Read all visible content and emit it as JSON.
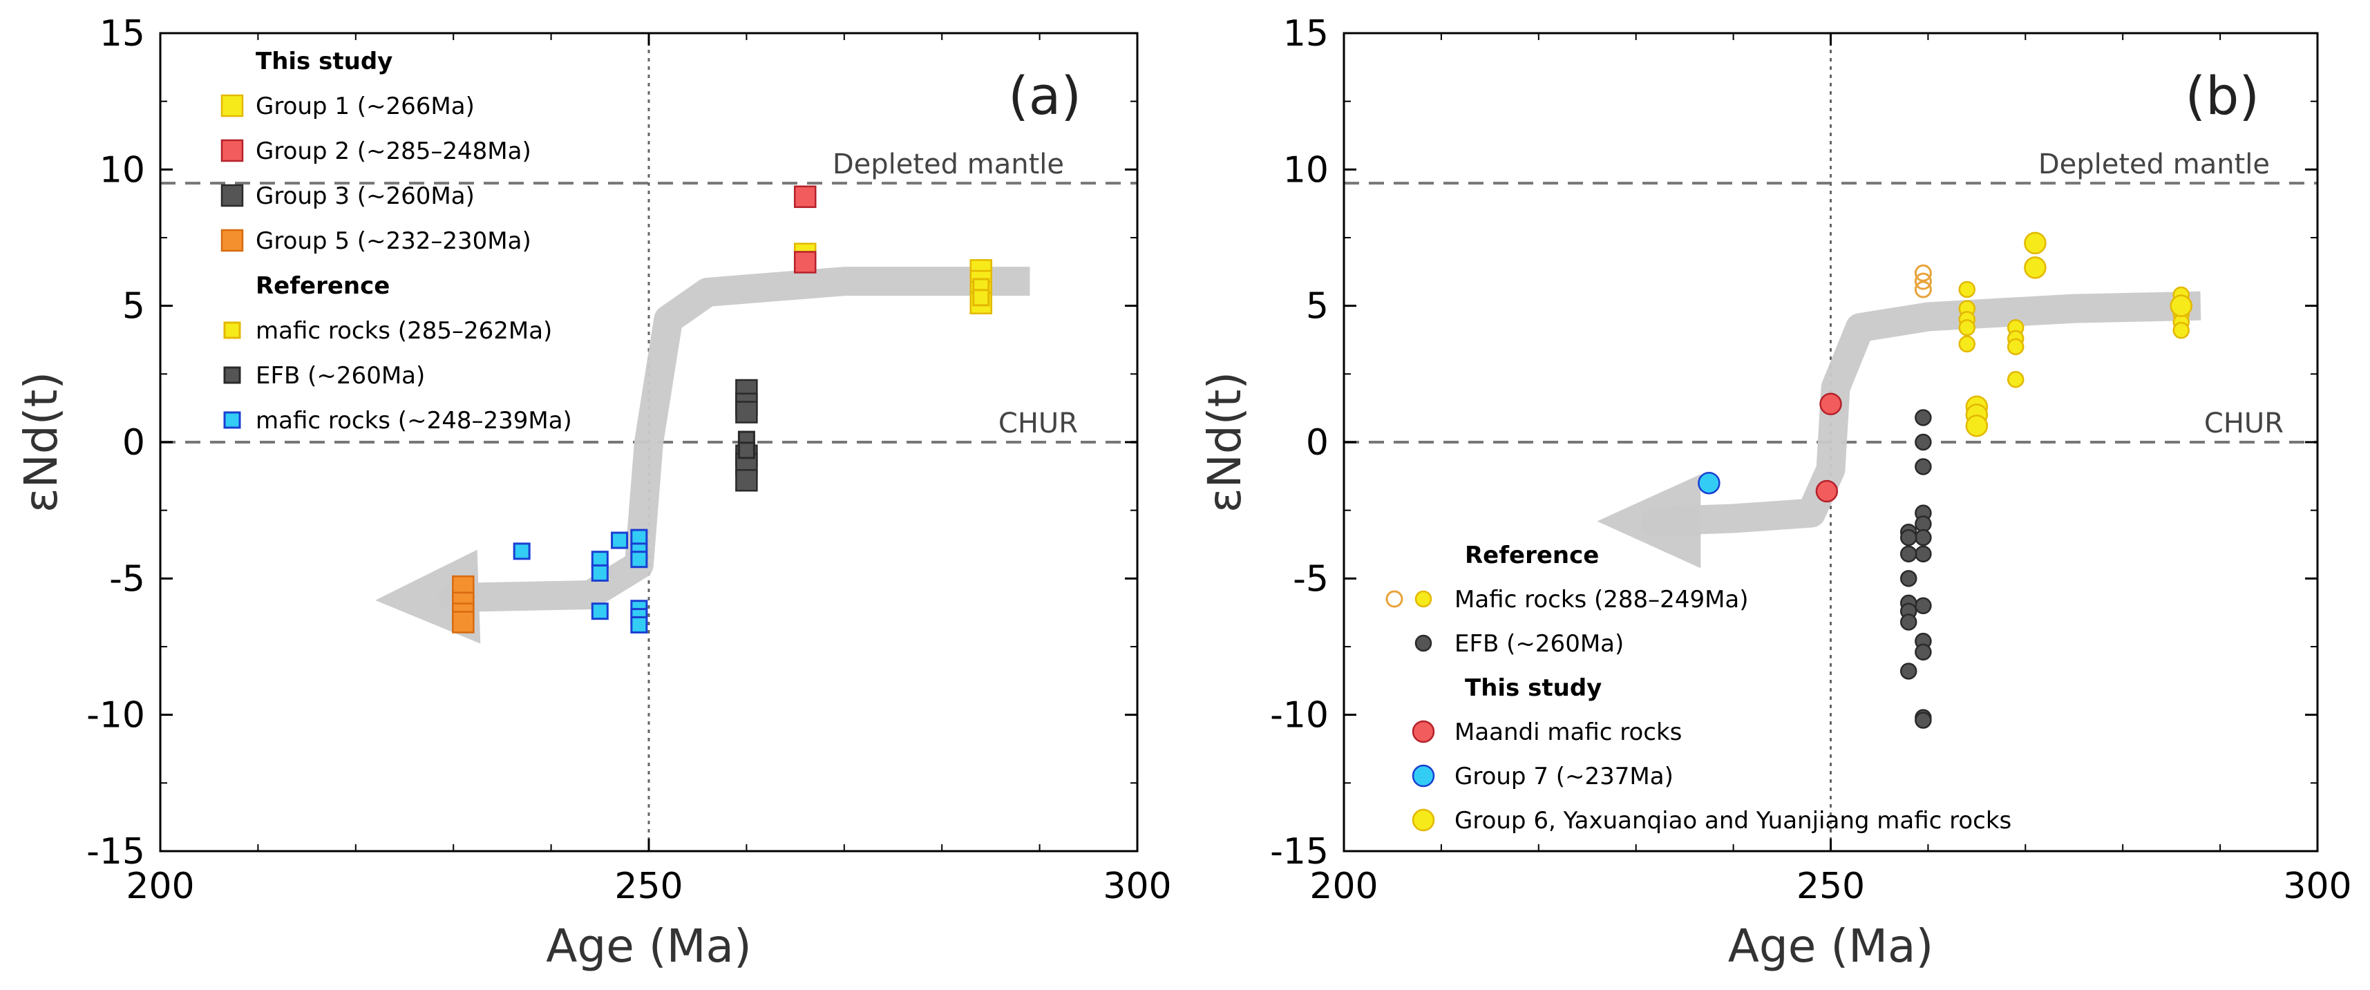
{
  "chart_data": [
    {
      "panel_label": "(a)",
      "type": "scatter",
      "xlabel": "Age (Ma)",
      "ylabel": "εNd(t)",
      "xlim": [
        200,
        300
      ],
      "ylim": [
        -15,
        15
      ],
      "x_ticks": [
        200,
        250,
        300
      ],
      "y_ticks": [
        -15,
        -10,
        -5,
        0,
        5,
        10,
        15
      ],
      "reference_lines": {
        "depleted_mantle": {
          "label": "Depleted mantle",
          "y": 9.5
        },
        "chur": {
          "label": "CHUR",
          "y": 0
        },
        "age_line": {
          "x": 250
        }
      },
      "trend_arrow": {
        "points": [
          [
            289,
            5.9
          ],
          [
            270,
            5.9
          ],
          [
            256,
            5.5
          ],
          [
            252,
            4.5
          ],
          [
            250,
            0
          ],
          [
            249,
            -4.5
          ],
          [
            244,
            -5.6
          ],
          [
            230,
            -5.7
          ],
          [
            222,
            -5.8
          ]
        ]
      },
      "legend": [
        {
          "heading": "This study"
        },
        {
          "label": "Group 1 (~266Ma)",
          "series": "g1"
        },
        {
          "label": "Group 2 (~285–248Ma)",
          "series": "g2"
        },
        {
          "label": "Group 3 (~260Ma)",
          "series": "g3"
        },
        {
          "label": "Group 5 (~232–230Ma)",
          "series": "g5"
        },
        {
          "heading": "Reference"
        },
        {
          "label": "mafic rocks (285–262Ma)",
          "series": "ref_mafic"
        },
        {
          "label": "EFB (~260Ma)",
          "series": "ref_efb"
        },
        {
          "label": "mafic rocks (~248–239Ma)",
          "series": "ref_mafic2"
        }
      ],
      "series": [
        {
          "key": "g1",
          "name": "Group 1 (~266Ma)",
          "marker": "square",
          "color": "#f7ea1a",
          "stroke": "#e3b800",
          "points": [
            [
              266,
              6.9
            ],
            [
              284,
              6.3
            ],
            [
              284,
              5.9
            ],
            [
              284,
              5.5
            ],
            [
              284,
              5.1
            ]
          ]
        },
        {
          "key": "g2",
          "name": "Group 2 (~285–248Ma)",
          "marker": "square",
          "color": "#f25c5c",
          "stroke": "#b5222a",
          "points": [
            [
              266,
              9.0
            ],
            [
              266,
              6.6
            ]
          ]
        },
        {
          "key": "g3",
          "name": "Group 3 (~260Ma)",
          "marker": "square",
          "color": "#555555",
          "stroke": "#2a2a2a",
          "points": [
            [
              260,
              1.9
            ],
            [
              260,
              1.4
            ],
            [
              260,
              1.1
            ],
            [
              260,
              -0.5
            ],
            [
              260,
              -0.8
            ],
            [
              260,
              -1.4
            ]
          ]
        },
        {
          "key": "g5",
          "name": "Group 5 (~232–230Ma)",
          "marker": "square",
          "color": "#f5902e",
          "stroke": "#d86a10",
          "points": [
            [
              231,
              -5.3
            ],
            [
              231,
              -5.9
            ],
            [
              231,
              -6.3
            ],
            [
              231,
              -6.6
            ]
          ]
        },
        {
          "key": "ref_mafic",
          "name": "mafic rocks (285–262Ma)",
          "marker": "square-small",
          "color": "#f7ea1a",
          "stroke": "#e3b800",
          "points": [
            [
              284,
              5.7
            ],
            [
              284,
              5.3
            ]
          ]
        },
        {
          "key": "ref_efb",
          "name": "EFB (~260Ma)",
          "marker": "square-small",
          "color": "#555555",
          "stroke": "#2a2a2a",
          "points": [
            [
              260,
              0.1
            ],
            [
              260,
              -0.3
            ]
          ]
        },
        {
          "key": "ref_mafic2",
          "name": "mafic rocks (~248–239Ma)",
          "marker": "square-small",
          "color": "#33ccf5",
          "stroke": "#1a3fd1",
          "points": [
            [
              237,
              -4.0
            ],
            [
              245,
              -4.3
            ],
            [
              245,
              -4.8
            ],
            [
              245,
              -6.2
            ],
            [
              247,
              -3.6
            ],
            [
              249,
              -3.5
            ],
            [
              249,
              -4.0
            ],
            [
              249,
              -4.3
            ],
            [
              249,
              -6.1
            ],
            [
              249,
              -6.4
            ],
            [
              249,
              -6.7
            ]
          ]
        }
      ]
    },
    {
      "panel_label": "(b)",
      "type": "scatter",
      "xlabel": "Age (Ma)",
      "ylabel": "εNd(t)",
      "xlim": [
        200,
        300
      ],
      "ylim": [
        -15,
        15
      ],
      "x_ticks": [
        200,
        250,
        300
      ],
      "y_ticks": [
        -15,
        -10,
        -5,
        0,
        5,
        10,
        15
      ],
      "reference_lines": {
        "depleted_mantle": {
          "label": "Depleted mantle",
          "y": 9.5
        },
        "chur": {
          "label": "CHUR",
          "y": 0
        },
        "age_line": {
          "x": 250
        }
      },
      "trend_arrow": {
        "points": [
          [
            288,
            5.0
          ],
          [
            275,
            4.9
          ],
          [
            260,
            4.6
          ],
          [
            253,
            4.2
          ],
          [
            250.5,
            2.0
          ],
          [
            250,
            -1.0
          ],
          [
            248,
            -2.6
          ],
          [
            240,
            -2.8
          ],
          [
            232,
            -2.9
          ],
          [
            226,
            -2.9
          ]
        ]
      },
      "legend": [
        {
          "heading": "Reference"
        },
        {
          "label": "Mafic rocks (288–249Ma)",
          "series": "ref_mafic"
        },
        {
          "label": "EFB (~260Ma)",
          "series": "ref_efb"
        },
        {
          "heading": "This study"
        },
        {
          "label": "Maandi mafic rocks",
          "series": "maandi"
        },
        {
          "label": "Group 7 (~237Ma)",
          "series": "g7"
        },
        {
          "label": "Group 6, Yaxuanqiao and Yuanjiang mafic rocks",
          "series": "g6"
        }
      ],
      "series": [
        {
          "key": "ref_mafic_open",
          "name": "Mafic rocks (288–249Ma)",
          "marker": "circle-open",
          "color": "none",
          "stroke": "#e8a33a",
          "points": [
            [
              259.5,
              6.2
            ],
            [
              259.5,
              5.9
            ],
            [
              259.5,
              5.6
            ]
          ]
        },
        {
          "key": "ref_mafic",
          "name": "Mafic rocks (288–249Ma)",
          "marker": "circle-small",
          "color": "#f7ea1a",
          "stroke": "#e3b800",
          "points": [
            [
              264,
              5.6
            ],
            [
              264,
              4.9
            ],
            [
              264,
              4.5
            ],
            [
              264,
              4.2
            ],
            [
              264,
              3.6
            ],
            [
              269,
              4.2
            ],
            [
              269,
              3.8
            ],
            [
              269,
              3.5
            ],
            [
              269,
              2.3
            ],
            [
              286,
              5.4
            ],
            [
              286,
              5.1
            ],
            [
              286,
              4.7
            ],
            [
              286,
              4.4
            ],
            [
              286,
              4.1
            ]
          ]
        },
        {
          "key": "ref_efb",
          "name": "EFB (~260Ma)",
          "marker": "circle-small",
          "color": "#555555",
          "stroke": "#2a2a2a",
          "points": [
            [
              259.5,
              0.9
            ],
            [
              259.5,
              0.0
            ],
            [
              259.5,
              -0.9
            ],
            [
              259.5,
              -2.6
            ],
            [
              259.5,
              -3.0
            ],
            [
              259.5,
              -3.5
            ],
            [
              259.5,
              -4.1
            ],
            [
              259.5,
              -6.0
            ],
            [
              259.5,
              -7.3
            ],
            [
              259.5,
              -7.7
            ],
            [
              259.5,
              -10.1
            ],
            [
              259.5,
              -10.2
            ],
            [
              258,
              -3.3
            ],
            [
              258,
              -3.5
            ],
            [
              258,
              -4.1
            ],
            [
              258,
              -5.0
            ],
            [
              258,
              -5.9
            ],
            [
              258,
              -6.2
            ],
            [
              258,
              -6.6
            ],
            [
              258,
              -8.4
            ]
          ]
        },
        {
          "key": "maandi",
          "name": "Maandi mafic rocks",
          "marker": "circle",
          "color": "#f25c5c",
          "stroke": "#b5222a",
          "points": [
            [
              250,
              1.4
            ],
            [
              249.6,
              -1.8
            ]
          ]
        },
        {
          "key": "g7",
          "name": "Group 7 (~237Ma)",
          "marker": "circle",
          "color": "#33ccf5",
          "stroke": "#1a3fd1",
          "points": [
            [
              237.5,
              -1.5
            ]
          ]
        },
        {
          "key": "g6",
          "name": "Group 6, Yaxuanqiao and Yuanjiang mafic rocks",
          "marker": "circle",
          "color": "#f7ea1a",
          "stroke": "#e3b800",
          "points": [
            [
              265,
              1.3
            ],
            [
              265,
              1.0
            ],
            [
              265,
              0.6
            ],
            [
              271,
              7.3
            ],
            [
              271,
              6.4
            ],
            [
              286,
              5.0
            ]
          ]
        }
      ]
    }
  ]
}
